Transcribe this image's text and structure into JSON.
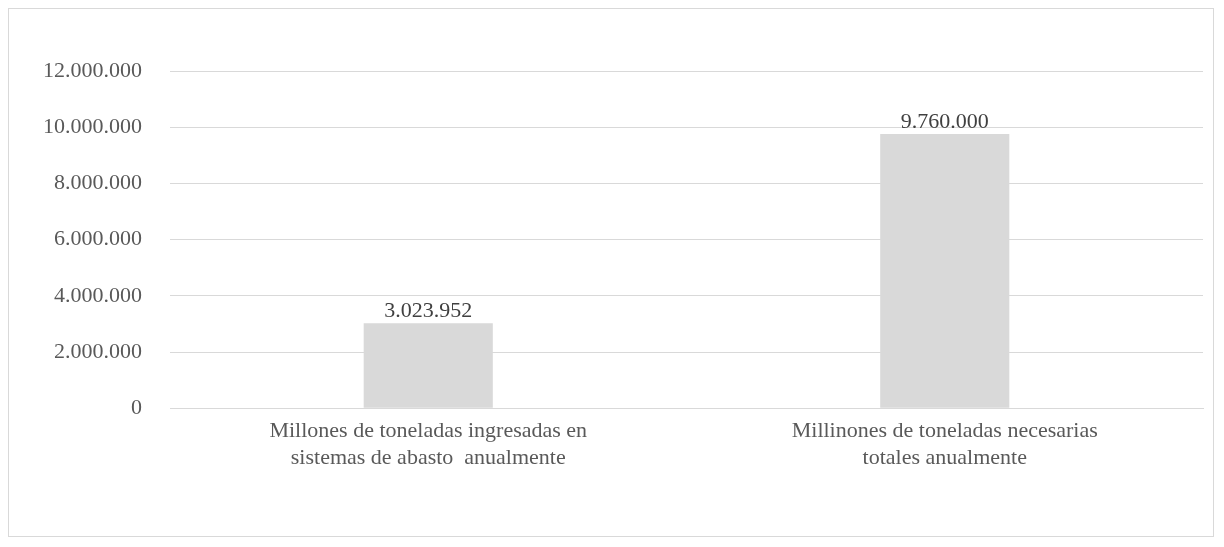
{
  "chart_data": {
    "type": "bar",
    "categories": [
      "Millones de toneladas ingresadas en sistemas de abasto  anualmente",
      "Millinones de toneladas necesarias totales anualmente"
    ],
    "values": [
      3023952,
      9760000
    ],
    "color": "#d9d9d9",
    "value_labels": [
      "3.023.952",
      "9.760.000"
    ],
    "ylim": [
      0,
      12000000
    ],
    "yticks": [
      {
        "value": 0,
        "label": "0"
      },
      {
        "value": 2000000,
        "label": "2.000.000"
      },
      {
        "value": 4000000,
        "label": "4.000.000"
      },
      {
        "value": 6000000,
        "label": "6.000.000"
      },
      {
        "value": 8000000,
        "label": "8.000.000"
      },
      {
        "value": 10000000,
        "label": "10.000.000"
      },
      {
        "value": 12000000,
        "label": "12.000.000"
      }
    ],
    "grid": "y",
    "legend": false
  }
}
